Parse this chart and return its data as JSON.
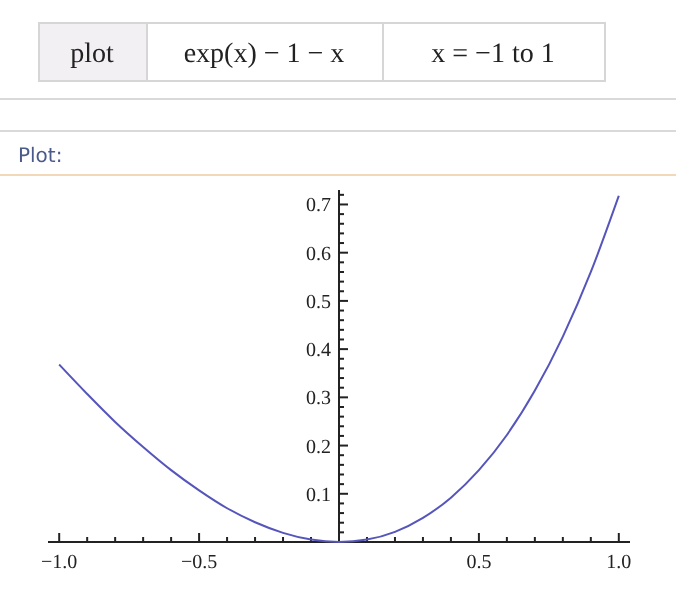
{
  "chart_data": {
    "type": "line",
    "title": "Plot:",
    "annotations": [
      "plot",
      "exp(x) − 1 − x",
      "x = −1 to 1"
    ],
    "x": [
      -1,
      -0.9,
      -0.8,
      -0.7,
      -0.6,
      -0.5,
      -0.4,
      -0.3,
      -0.2,
      -0.1,
      0,
      0.1,
      0.2,
      0.3,
      0.4,
      0.5,
      0.6,
      0.7,
      0.8,
      0.9,
      1
    ],
    "series": [
      {
        "color": "#5555bb",
        "values": [
          0.368,
          0.307,
          0.249,
          0.197,
          0.149,
          0.107,
          0.07,
          0.041,
          0.019,
          0.005,
          0,
          0.005,
          0.021,
          0.05,
          0.092,
          0.149,
          0.222,
          0.314,
          0.426,
          0.56,
          0.718
        ]
      }
    ],
    "xlim": [
      -1.04,
      1.04
    ],
    "ylim": [
      0,
      0.73
    ],
    "xticks": [
      {
        "value": -1,
        "label": "−1.0"
      },
      {
        "value": -0.9,
        "label": null
      },
      {
        "value": -0.8,
        "label": null
      },
      {
        "value": -0.7,
        "label": null
      },
      {
        "value": -0.6,
        "label": null
      },
      {
        "value": -0.5,
        "label": "−0.5"
      },
      {
        "value": -0.4,
        "label": null
      },
      {
        "value": -0.3,
        "label": null
      },
      {
        "value": -0.2,
        "label": null
      },
      {
        "value": -0.1,
        "label": null
      },
      {
        "value": 0.1,
        "label": null
      },
      {
        "value": 0.2,
        "label": null
      },
      {
        "value": 0.3,
        "label": null
      },
      {
        "value": 0.4,
        "label": null
      },
      {
        "value": 0.5,
        "label": "0.5"
      },
      {
        "value": 0.6,
        "label": null
      },
      {
        "value": 0.7,
        "label": null
      },
      {
        "value": 0.8,
        "label": null
      },
      {
        "value": 0.9,
        "label": null
      },
      {
        "value": 1,
        "label": "1.0"
      }
    ],
    "yticks": [
      {
        "value": 0.02,
        "label": null
      },
      {
        "value": 0.04,
        "label": null
      },
      {
        "value": 0.06,
        "label": null
      },
      {
        "value": 0.08,
        "label": null
      },
      0.1,
      {
        "value": 0.12,
        "label": null
      },
      {
        "value": 0.14,
        "label": null
      },
      {
        "value": 0.16,
        "label": null
      },
      {
        "value": 0.18,
        "label": null
      },
      0.2,
      {
        "value": 0.22,
        "label": null
      },
      {
        "value": 0.24,
        "label": null
      },
      {
        "value": 0.26,
        "label": null
      },
      {
        "value": 0.28,
        "label": null
      },
      0.3,
      {
        "value": 0.32,
        "label": null
      },
      {
        "value": 0.34,
        "label": null
      },
      {
        "value": 0.36,
        "label": null
      },
      {
        "value": 0.38,
        "label": null
      },
      0.4,
      {
        "value": 0.42,
        "label": null
      },
      {
        "value": 0.44,
        "label": null
      },
      {
        "value": 0.46,
        "label": null
      },
      {
        "value": 0.48,
        "label": null
      },
      0.5,
      {
        "value": 0.52,
        "label": null
      },
      {
        "value": 0.54,
        "label": null
      },
      {
        "value": 0.56,
        "label": null
      },
      {
        "value": 0.58,
        "label": null
      },
      0.6,
      {
        "value": 0.62,
        "label": null
      },
      {
        "value": 0.64,
        "label": null
      },
      {
        "value": 0.66,
        "label": null
      },
      {
        "value": 0.68,
        "label": null
      },
      0.7,
      {
        "value": 0.72,
        "label": null
      }
    ],
    "grid": false,
    "marker": "none",
    "line_style": "solid"
  }
}
